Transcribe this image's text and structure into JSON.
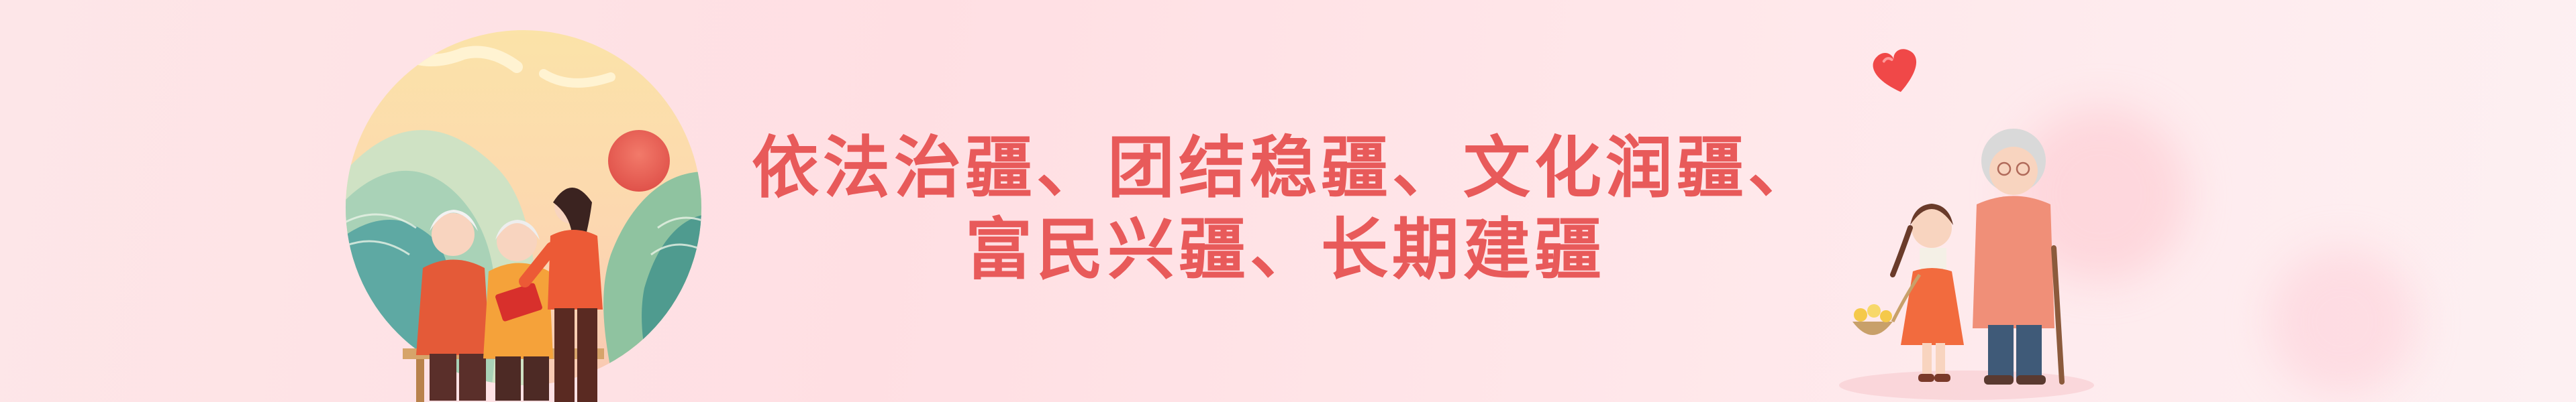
{
  "banner": {
    "slogan_lines": [
      "依法治疆、团结稳疆、文化润疆、",
      "富民兴疆、长期建疆"
    ]
  },
  "colors": {
    "background": "#ffe1e4",
    "slogan_text": "#e85a5a",
    "accent_red": "#f04848"
  },
  "icons": [
    "heart-icon"
  ]
}
